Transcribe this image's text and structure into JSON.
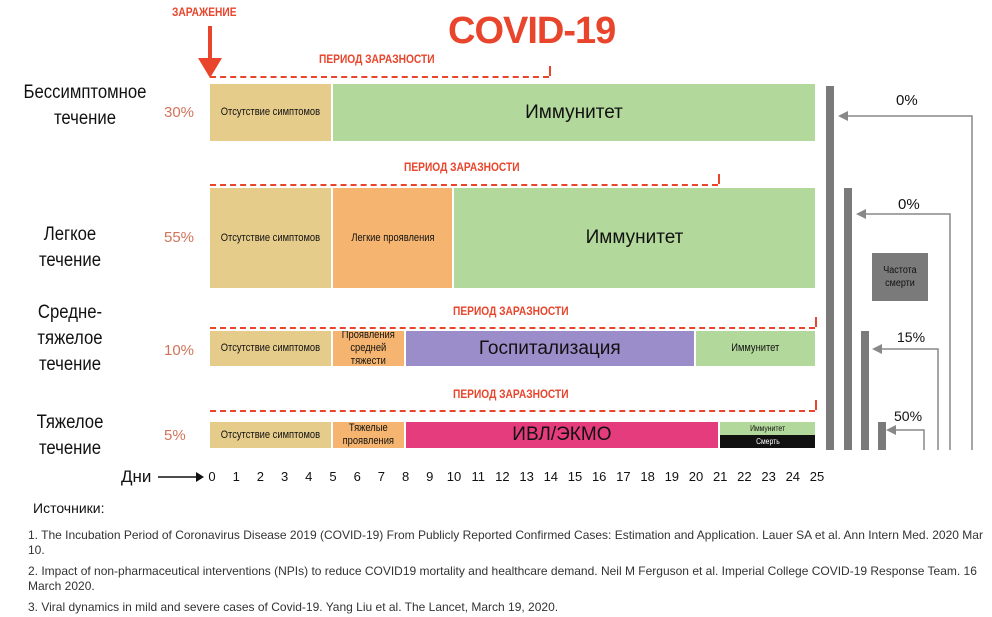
{
  "title": "COVID-19",
  "infection_label": "ЗАРАЖЕНИЕ",
  "period_label": "ПЕРИОД ЗАРАЗНОСТИ",
  "rows": [
    {
      "label": "Бессимптомное течение",
      "percent": "30%",
      "phases": [
        {
          "label": "Отсутствие симптомов",
          "start": 0,
          "end": 5,
          "color": "#e6cc8a"
        },
        {
          "label": "Иммунитет",
          "start": 5,
          "end": 25,
          "color": "#b3d89b"
        }
      ],
      "contagious": [
        0,
        14
      ],
      "mortality": "0%"
    },
    {
      "label": "Легкое течение",
      "percent": "55%",
      "phases": [
        {
          "label": "Отсутствие симптомов",
          "start": 0,
          "end": 5,
          "color": "#e6cc8a"
        },
        {
          "label": "Легкие проявления",
          "start": 5,
          "end": 10,
          "color": "#f5b570"
        },
        {
          "label": "Иммунитет",
          "start": 10,
          "end": 25,
          "color": "#b3d89b"
        }
      ],
      "contagious": [
        0,
        21
      ],
      "mortality": "0%"
    },
    {
      "label": "Средне-тяжелое течение",
      "percent": "10%",
      "phases": [
        {
          "label": "Отсутствие симптомов",
          "start": 0,
          "end": 5,
          "color": "#e6cc8a"
        },
        {
          "label": "Проявления средней тяжести",
          "start": 5,
          "end": 8,
          "color": "#f5b570"
        },
        {
          "label": "Госпитализация",
          "start": 8,
          "end": 20,
          "color": "#9b8dc9"
        },
        {
          "label": "Иммунитет",
          "start": 20,
          "end": 25,
          "color": "#b3d89b"
        }
      ],
      "contagious": [
        0,
        25
      ],
      "mortality": "15%"
    },
    {
      "label": "Тяжелое течение",
      "percent": "5%",
      "phases": [
        {
          "label": "Отсутствие симптомов",
          "start": 0,
          "end": 5,
          "color": "#e6cc8a"
        },
        {
          "label": "Тяжелые проявления",
          "start": 5,
          "end": 8,
          "color": "#f5b570"
        },
        {
          "label": "ИВЛ/ЭКМО",
          "start": 8,
          "end": 21,
          "color": "#e53c7d"
        }
      ],
      "end_split": {
        "top_label": "Иммунитет",
        "bottom_label": "Смерть",
        "start": 21,
        "end": 25
      },
      "contagious": [
        0,
        25
      ],
      "mortality": "50%"
    }
  ],
  "mortality_label": "Частота смерти",
  "days_label": "Дни",
  "days": [
    "0",
    "1",
    "2",
    "3",
    "4",
    "5",
    "6",
    "7",
    "8",
    "9",
    "10",
    "11",
    "12",
    "13",
    "14",
    "15",
    "16",
    "17",
    "18",
    "19",
    "20",
    "21",
    "22",
    "23",
    "24",
    "25"
  ],
  "sources": {
    "heading": "Источники:",
    "items": [
      "1. The Incubation Period of Coronavirus Disease 2019 (COVID-19) From Publicly Reported Confirmed Cases: Estimation and Application. Lauer SA et al. Ann Intern Med. 2020 Mar 10.",
      "2. Impact of non-pharmaceutical interventions (NPIs) to reduce COVID19 mortality and healthcare demand. Neil M Ferguson et al. Imperial College COVID-19 Response Team. 16 March 2020.",
      "3. Viral dynamics in mild and severe cases of Covid-19. Yang Liu et al. The Lancet, March 19, 2020."
    ]
  },
  "colors": {
    "accent": "#e8452c",
    "bar": "#7a7a7a",
    "percent": "#d0745a"
  }
}
